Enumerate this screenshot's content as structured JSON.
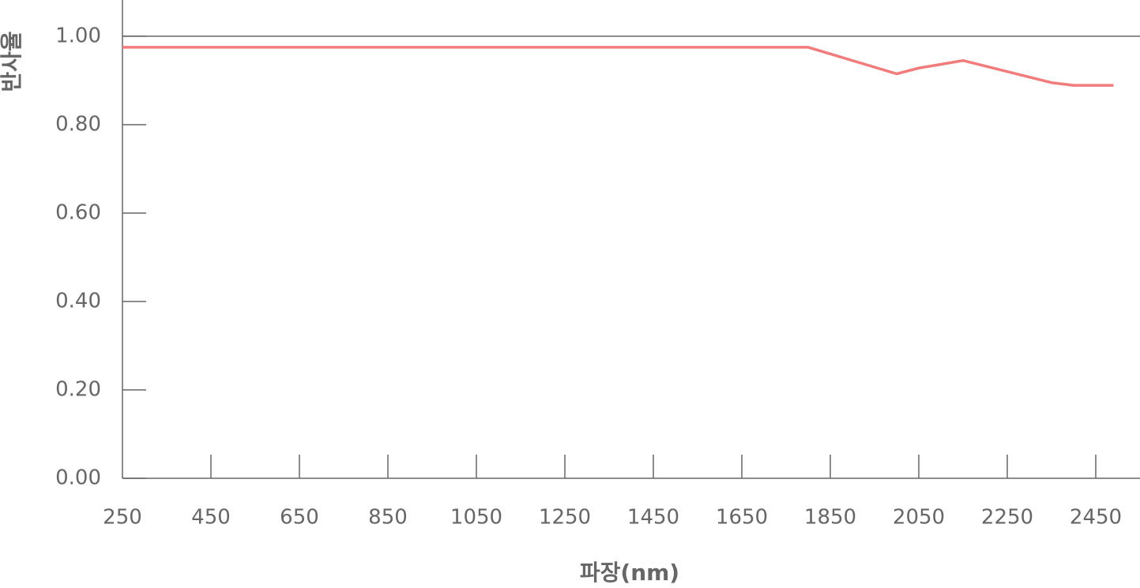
{
  "chart_data": {
    "type": "line",
    "x_label": "파장(nm)",
    "y_label": "반사율",
    "x": [
      250,
      1800,
      1850,
      1950,
      2000,
      2050,
      2150,
      2250,
      2350,
      2400,
      2490
    ],
    "series": [
      {
        "name": "반사율",
        "color": "#f27c7c",
        "values": [
          0.975,
          0.975,
          0.96,
          0.93,
          0.915,
          0.928,
          0.945,
          0.92,
          0.895,
          0.889,
          0.889
        ]
      }
    ],
    "xlim": [
      250,
      2550
    ],
    "ylim": [
      0,
      1.082
    ],
    "xticks": [
      250,
      450,
      650,
      850,
      1050,
      1250,
      1450,
      1650,
      1850,
      2050,
      2250,
      2450
    ],
    "yticks": [
      {
        "value": 0,
        "label": "0.00"
      },
      {
        "value": 0.2,
        "label": "0.20"
      },
      {
        "value": 0.4,
        "label": "0.40"
      },
      {
        "value": 0.6,
        "label": "0.60"
      },
      {
        "value": 0.8,
        "label": "0.80"
      },
      {
        "value": 1,
        "label": "1.00"
      }
    ],
    "axis_color": "#666666"
  }
}
